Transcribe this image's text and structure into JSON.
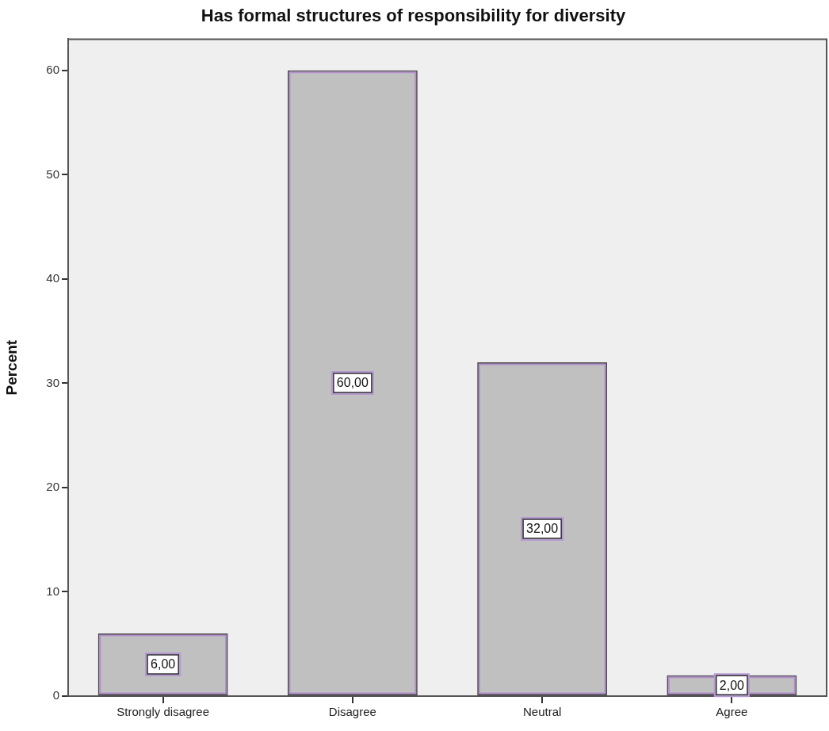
{
  "chart_data": {
    "type": "bar",
    "title": "Has formal structures of responsibility for diversity",
    "ylabel": "Percent",
    "categories": [
      "Strongly disagree",
      "Disagree",
      "Neutral",
      "Agree"
    ],
    "values": [
      6,
      60,
      32,
      2
    ],
    "color": "#c0c0c0",
    "value_labels": [
      "6,00",
      "60,00",
      "32,00",
      "2,00"
    ],
    "ylim": [
      0,
      63
    ],
    "yticks": [
      0,
      10,
      20,
      30,
      40,
      50,
      60
    ]
  }
}
